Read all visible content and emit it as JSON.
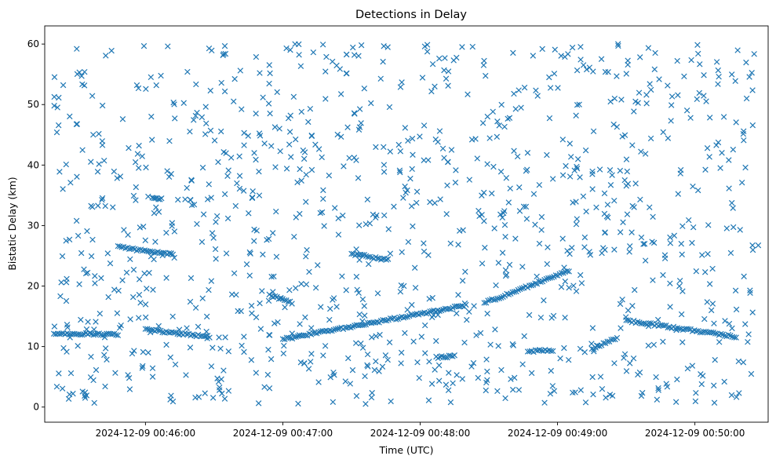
{
  "chart_data": {
    "type": "scatter",
    "title": "Detections in Delay",
    "xlabel": "Time (UTC)",
    "ylabel": "Bistatic Delay (km)",
    "x_ticks": [
      "2024-12-09 00:46:00",
      "2024-12-09 00:47:00",
      "2024-12-09 00:48:00",
      "2024-12-09 00:49:00",
      "2024-12-09 00:50:00"
    ],
    "y_ticks": [
      "0",
      "10",
      "20",
      "30",
      "40",
      "50",
      "60"
    ],
    "xlim": [
      "2024-12-09 00:45:16",
      "2024-12-09 00:50:32"
    ],
    "ylim": [
      -2.5,
      63
    ],
    "grid": false,
    "marker": "x",
    "color": "#1f77b4",
    "tracks": [
      {
        "x": [
          "2024-12-09 00:45:20",
          "2024-12-09 00:45:48"
        ],
        "y": [
          12.2,
          12.0
        ]
      },
      {
        "x": [
          "2024-12-09 00:45:48",
          "2024-12-09 00:45:57"
        ],
        "y": [
          26.6,
          25.9
        ]
      },
      {
        "x": [
          "2024-12-09 00:45:58",
          "2024-12-09 00:46:12"
        ],
        "y": [
          25.9,
          25.2
        ]
      },
      {
        "x": [
          "2024-12-09 00:46:00",
          "2024-12-09 00:46:28"
        ],
        "y": [
          12.8,
          11.6
        ]
      },
      {
        "x": [
          "2024-12-09 00:46:03",
          "2024-12-09 00:46:07"
        ],
        "y": [
          34.6,
          34.4
        ]
      },
      {
        "x": [
          "2024-12-09 00:46:55",
          "2024-12-09 00:47:04"
        ],
        "y": [
          18.4,
          17.2
        ]
      },
      {
        "x": [
          "2024-12-09 00:47:00",
          "2024-12-09 00:48:20"
        ],
        "y": [
          11.2,
          16.8
        ]
      },
      {
        "x": [
          "2024-12-09 00:47:30",
          "2024-12-09 00:47:38"
        ],
        "y": [
          25.2,
          24.9
        ]
      },
      {
        "x": [
          "2024-12-09 00:47:39",
          "2024-12-09 00:47:46"
        ],
        "y": [
          24.7,
          24.4
        ]
      },
      {
        "x": [
          "2024-12-09 00:48:28",
          "2024-12-09 00:49:05"
        ],
        "y": [
          17.2,
          22.5
        ]
      },
      {
        "x": [
          "2024-12-09 00:49:30",
          "2024-12-09 00:50:18"
        ],
        "y": [
          14.3,
          11.6
        ]
      },
      {
        "x": [
          "2024-12-09 00:49:15",
          "2024-12-09 00:49:26"
        ],
        "y": [
          9.5,
          11.5
        ]
      },
      {
        "x": [
          "2024-12-09 00:48:47",
          "2024-12-09 00:48:58"
        ],
        "y": [
          9.2,
          9.4
        ]
      },
      {
        "x": [
          "2024-12-09 00:48:07",
          "2024-12-09 00:48:15"
        ],
        "y": [
          8.2,
          8.4
        ]
      }
    ],
    "noise": {
      "count": 1080,
      "x_range": [
        "2024-12-09 00:45:20",
        "2024-12-09 00:50:28"
      ],
      "y_range": [
        0.5,
        60
      ]
    }
  }
}
